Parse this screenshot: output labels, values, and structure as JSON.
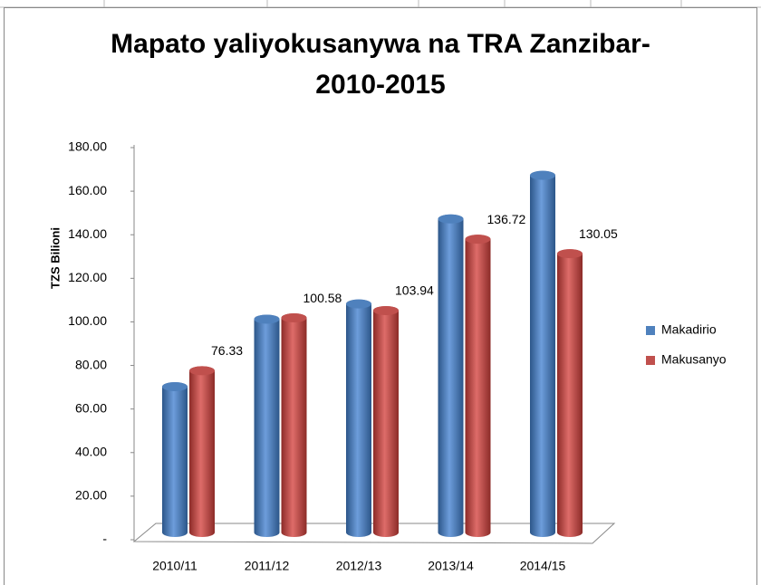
{
  "chart_data": {
    "type": "bar3d",
    "title_lines": [
      "Mapato yaliyokusanywa na TRA Zanzibar-",
      "2010-2015"
    ],
    "y_label": "TZS Bilioni",
    "categories": [
      "2010/11",
      "2011/12",
      "2012/13",
      "2013/14",
      "2014/15"
    ],
    "series": [
      {
        "name": "Makadirio",
        "color": "#4f81bd",
        "values": [
          69,
          100,
          107,
          146,
          166
        ]
      },
      {
        "name": "Makusanyo",
        "color": "#c0504d",
        "values": [
          76.33,
          100.58,
          103.94,
          136.72,
          130.05
        ]
      }
    ],
    "ylim": [
      0,
      180
    ],
    "yticks": [
      {
        "value": 0,
        "label": "-"
      },
      {
        "value": 20,
        "label": "20.00"
      },
      {
        "value": 40,
        "label": "40.00"
      },
      {
        "value": 60,
        "label": "60.00"
      },
      {
        "value": 80,
        "label": "80.00"
      },
      {
        "value": 100,
        "label": "100.00"
      },
      {
        "value": 120,
        "label": "120.00"
      },
      {
        "value": 140,
        "label": "140.00"
      },
      {
        "value": 160,
        "label": "160.00"
      },
      {
        "value": 180,
        "label": "180.00"
      }
    ],
    "value_label_series": 1,
    "legend": "right"
  }
}
